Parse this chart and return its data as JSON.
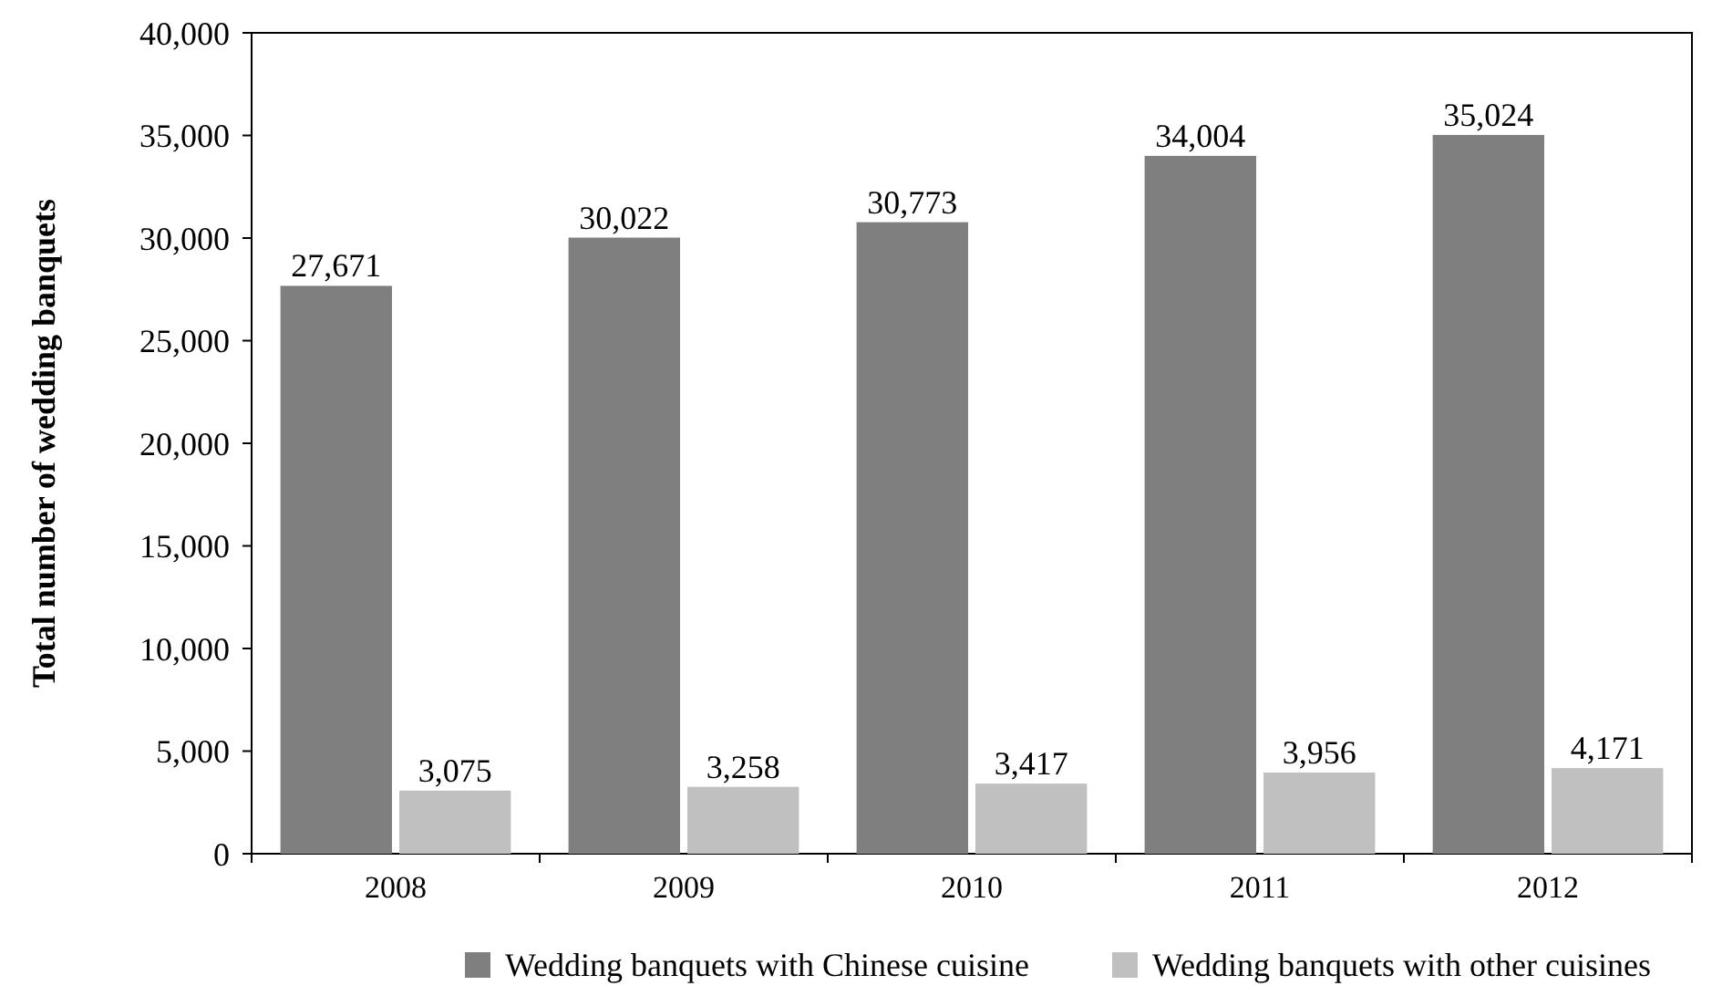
{
  "chart_data": {
    "type": "bar",
    "ylabel": "Total number of wedding banquets",
    "categories": [
      "2008",
      "2009",
      "2010",
      "2011",
      "2012"
    ],
    "series": [
      {
        "name": "Wedding banquets with Chinese cuisine",
        "color": "#7f7f7f",
        "values": [
          27671,
          30022,
          30773,
          34004,
          35024
        ],
        "value_labels": [
          "27,671",
          "30,022",
          "30,773",
          "34,004",
          "35,024"
        ]
      },
      {
        "name": "Wedding banquets with other cuisines",
        "color": "#c0c0c0",
        "values": [
          3075,
          3258,
          3417,
          3956,
          4171
        ],
        "value_labels": [
          "3,075",
          "3,258",
          "3,417",
          "3,956",
          "4,171"
        ]
      }
    ],
    "ylim": [
      0,
      40000
    ],
    "yticks": [
      {
        "value": 0,
        "label": "0"
      },
      {
        "value": 5000,
        "label": "5,000"
      },
      {
        "value": 10000,
        "label": "10,000"
      },
      {
        "value": 15000,
        "label": "15,000"
      },
      {
        "value": 20000,
        "label": "20,000"
      },
      {
        "value": 25000,
        "label": "25,000"
      },
      {
        "value": 30000,
        "label": "30,000"
      },
      {
        "value": 35000,
        "label": "35,000"
      },
      {
        "value": 40000,
        "label": "40,000"
      }
    ],
    "grid": false,
    "legend": "bottom"
  }
}
